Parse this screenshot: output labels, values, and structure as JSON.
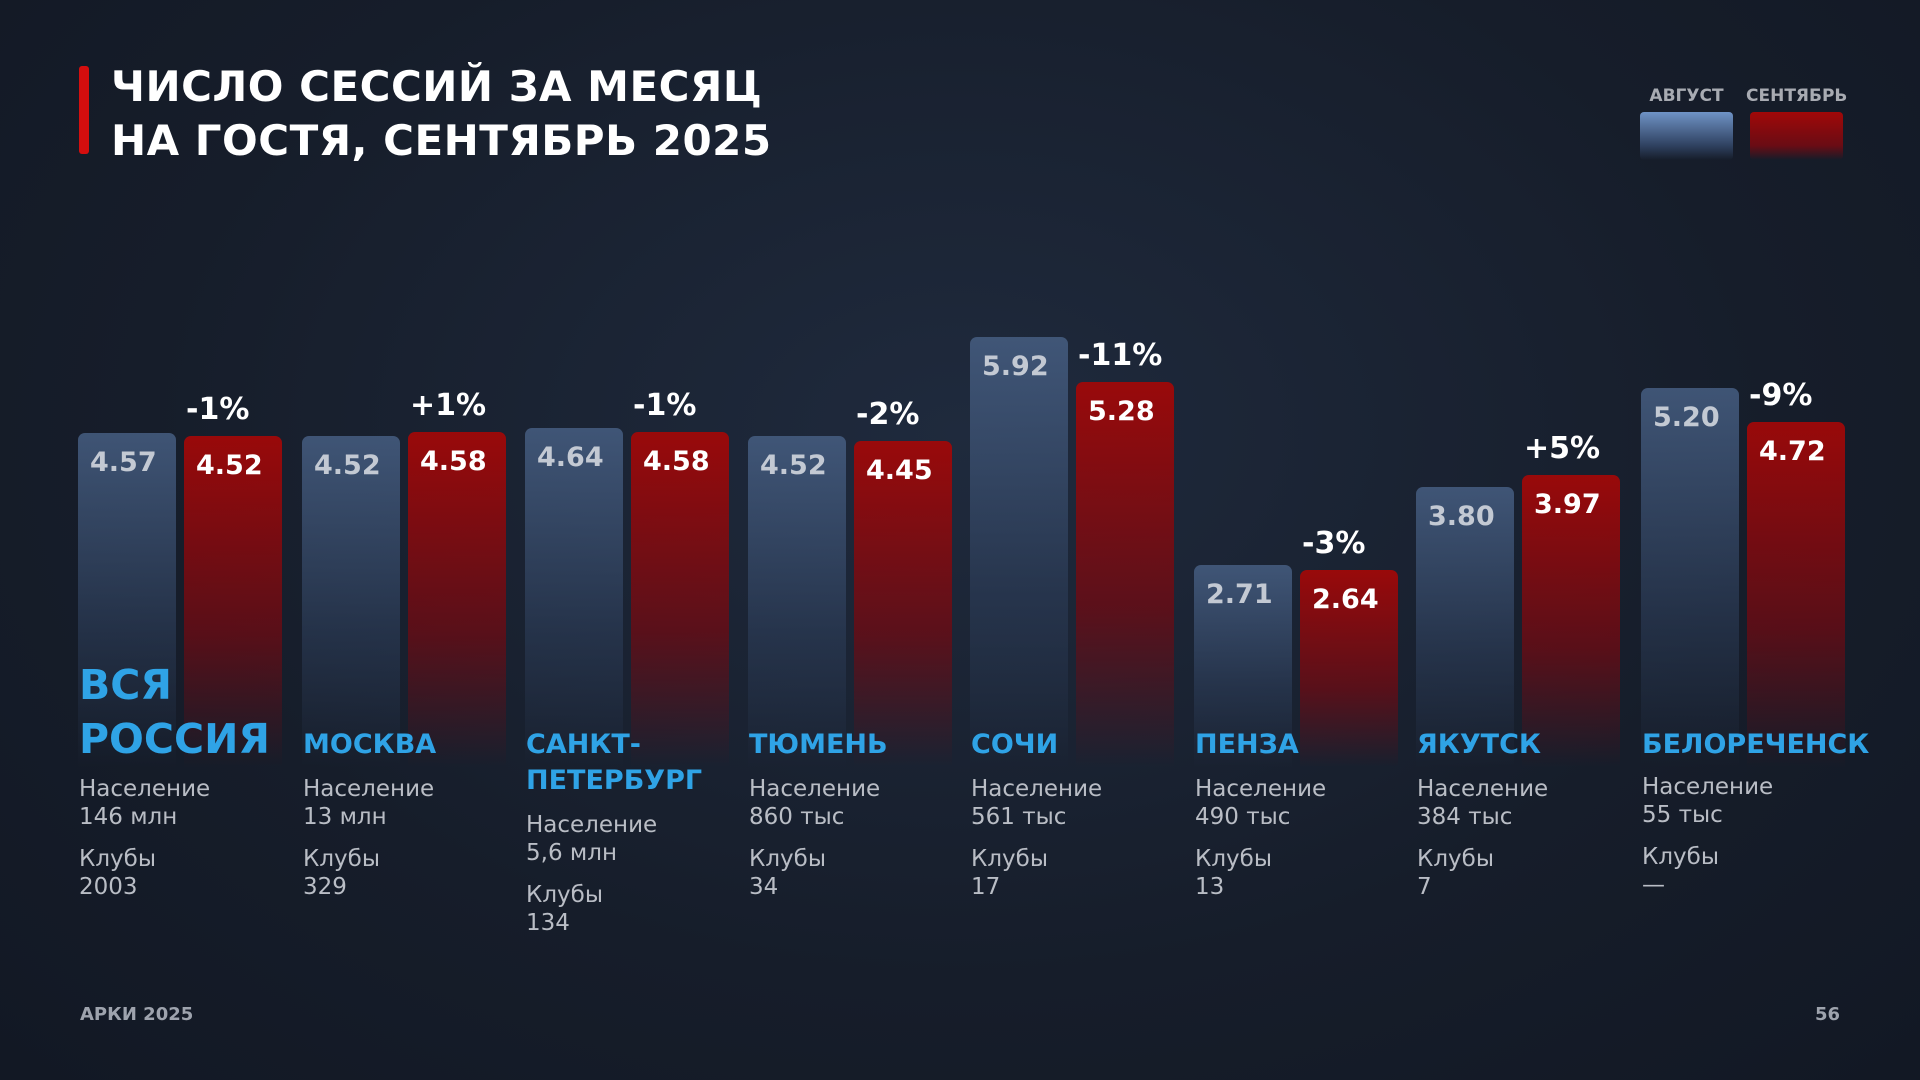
{
  "header": {
    "title_line1": "ЧИСЛО СЕССИЙ ЗА МЕСЯЦ",
    "title_line2": "НА ГОСТЯ, СЕНТЯБРЬ 2025"
  },
  "legend": [
    {
      "label": "АВГУСТ",
      "color": "#6f93c6"
    },
    {
      "label": "СЕНТЯБРЬ",
      "color": "#a10808"
    }
  ],
  "chart_data": {
    "type": "bar",
    "categories": [
      "ВСЯ РОССИЯ",
      "МОСКВА",
      "САНКТ-ПЕТЕРБУРГ",
      "ТЮМЕНЬ",
      "СОЧИ",
      "ПЕНЗА",
      "ЯКУТСК",
      "БЕЛОРЕЧЕНСК"
    ],
    "series": [
      {
        "name": "АВГУСТ",
        "values": [
          4.57,
          4.52,
          4.64,
          4.52,
          5.92,
          2.71,
          3.8,
          5.2
        ],
        "labels": [
          "4.57",
          "4.52",
          "4.64",
          "4.52",
          "5.92",
          "2.71",
          "3.80",
          "5.20"
        ]
      },
      {
        "name": "СЕНТЯБРЬ",
        "values": [
          4.52,
          4.58,
          4.58,
          4.45,
          5.28,
          2.64,
          3.97,
          4.72
        ],
        "labels": [
          "4.52",
          "4.58",
          "4.58",
          "4.45",
          "5.28",
          "2.64",
          "3.97",
          "4.72"
        ]
      }
    ],
    "changes": [
      "-1%",
      "+1%",
      "-1%",
      "-2%",
      "-11%",
      "-3%",
      "+5%",
      "-9%"
    ],
    "ylim": [
      0,
      6
    ],
    "grid": false,
    "legend": "top-right"
  },
  "cities": [
    {
      "name_lines": [
        "ВСЯ",
        "РОССИЯ"
      ],
      "population_label": "Население",
      "population": "146 млн",
      "clubs_label": "Клубы",
      "clubs": "2003"
    },
    {
      "name_lines": [
        "МОСКВА"
      ],
      "population_label": "Население",
      "population": "13 млн",
      "clubs_label": "Клубы",
      "clubs": "329"
    },
    {
      "name_lines": [
        "САНКТ-",
        "ПЕТЕРБУРГ"
      ],
      "population_label": "Население",
      "population": "5,6 млн",
      "clubs_label": "Клубы",
      "clubs": "134"
    },
    {
      "name_lines": [
        "ТЮМЕНЬ"
      ],
      "population_label": "Население",
      "population": "860 тыс",
      "clubs_label": "Клубы",
      "clubs": "34"
    },
    {
      "name_lines": [
        "СОЧИ"
      ],
      "population_label": "Население",
      "population": "561 тыс",
      "clubs_label": "Клубы",
      "clubs": "17"
    },
    {
      "name_lines": [
        "ПЕНЗА"
      ],
      "population_label": "Население",
      "population": "490 тыс",
      "clubs_label": "Клубы",
      "clubs": "13"
    },
    {
      "name_lines": [
        "ЯКУТСК"
      ],
      "population_label": "Население",
      "population": "384 тыс",
      "clubs_label": "Клубы",
      "clubs": "7"
    },
    {
      "name_lines": [
        "БЕЛОРЕЧЕНСК"
      ],
      "population_label": "Население",
      "population": "55 тыс",
      "clubs_label": "Клубы",
      "clubs": "—"
    }
  ],
  "footer": {
    "left": "АРКИ 2025",
    "page": "56"
  }
}
